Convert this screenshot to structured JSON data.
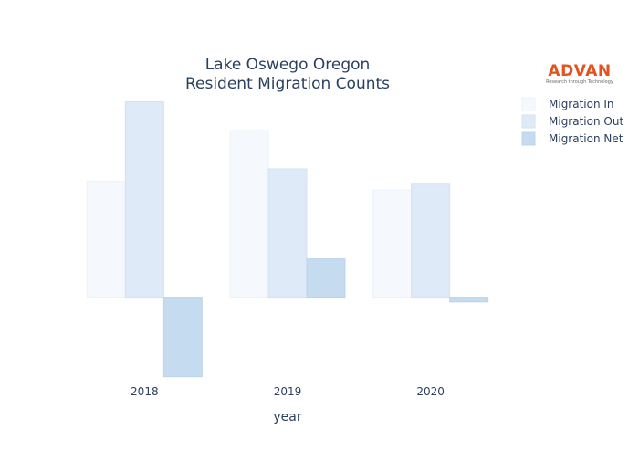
{
  "chart_data": {
    "type": "bar",
    "title_lines": [
      "Lake Oswego Oregon",
      "Resident Migration Counts"
    ],
    "xlabel": "year",
    "ylabel": "",
    "categories": [
      "2018",
      "2019",
      "2020"
    ],
    "series": [
      {
        "name": "Migration In",
        "values": [
          121,
          174,
          112
        ],
        "color": "#f5f9fe",
        "stroke": "#eaf2fb"
      },
      {
        "name": "Migration Out",
        "values": [
          204,
          134,
          118
        ],
        "color": "#deeaf7",
        "stroke": "#d3e2f3"
      },
      {
        "name": "Migration Net",
        "values": [
          -83,
          40,
          -5
        ],
        "color": "#c5dbef",
        "stroke": "#bcd4ec"
      }
    ],
    "ylim": [
      -90,
      215
    ],
    "grid": false,
    "legend_position": "top-right"
  },
  "logo": {
    "name": "ADVAN",
    "tagline": "Research through Technology"
  }
}
